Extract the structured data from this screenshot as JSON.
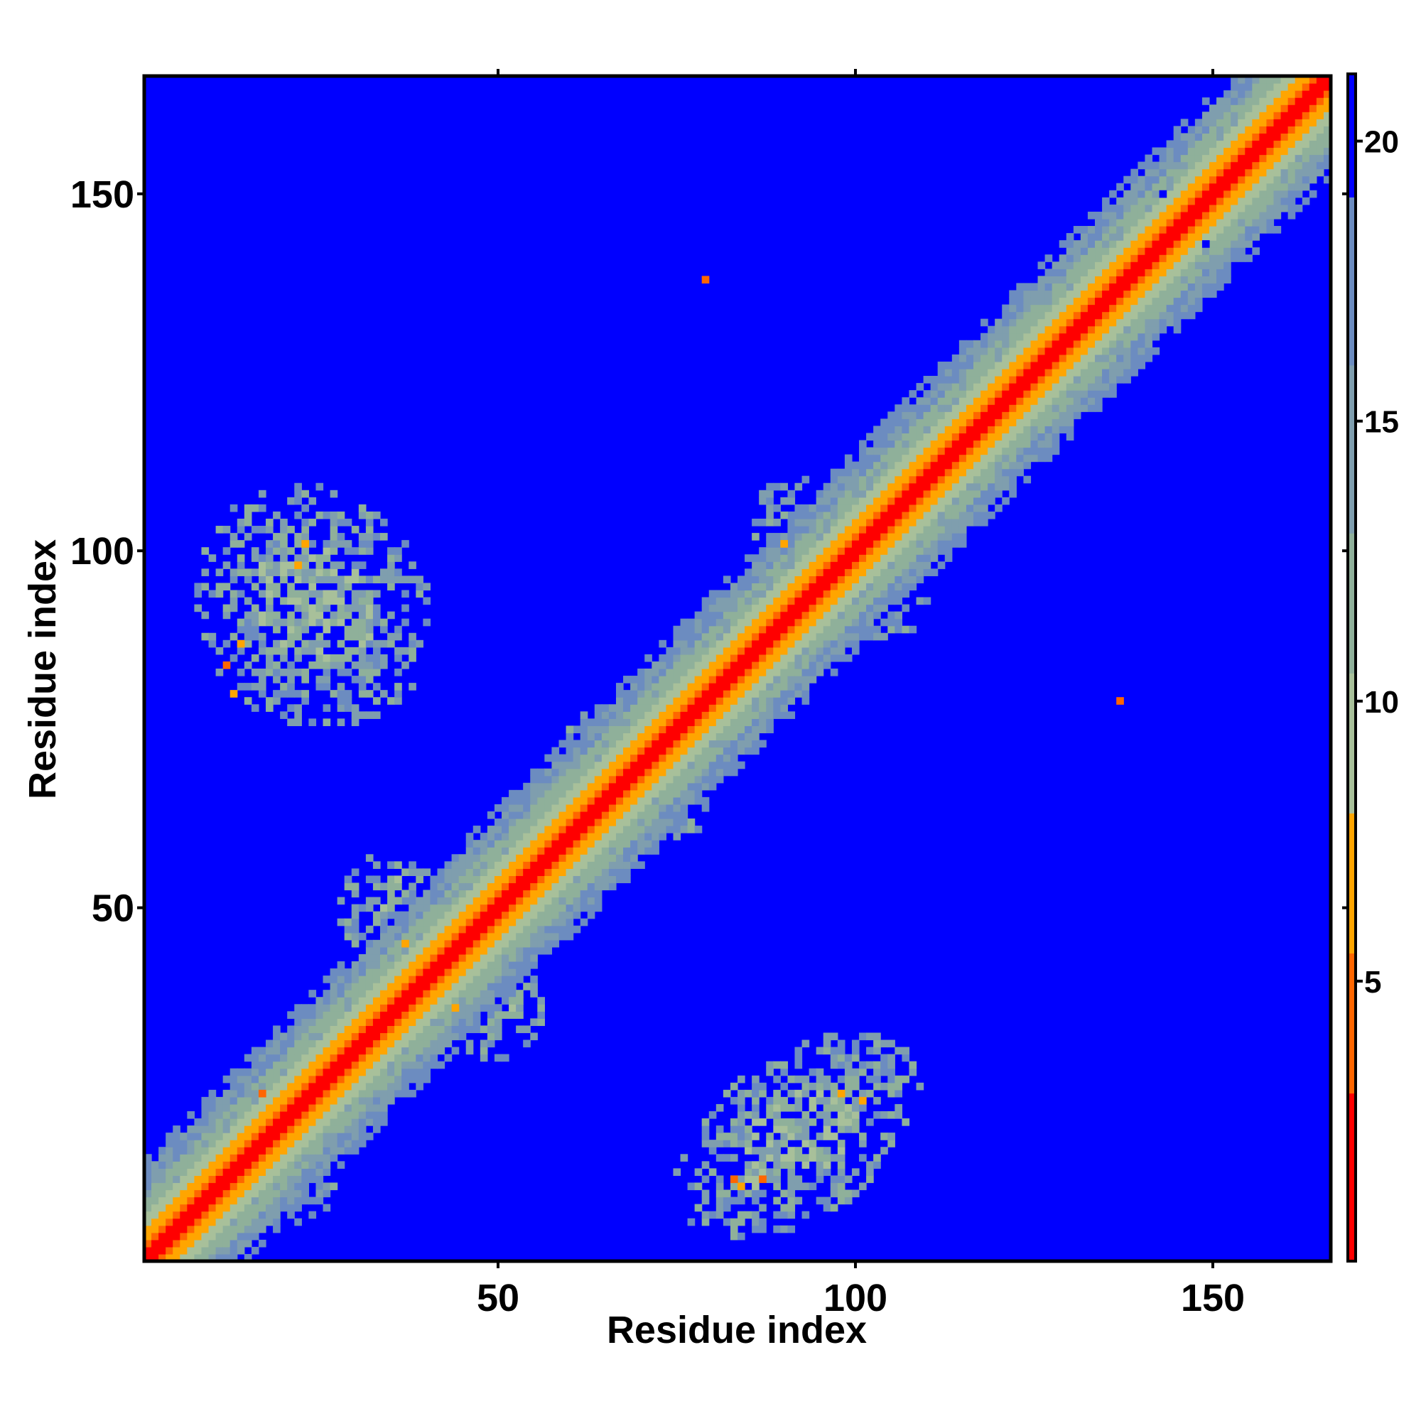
{
  "chart_data": {
    "type": "heatmap",
    "title": "",
    "xlabel": "Residue index",
    "ylabel": "Residue index",
    "xlim": [
      0.5,
      166.5
    ],
    "ylim": [
      0.5,
      166.5
    ],
    "n_residues": 166,
    "x_ticks": [
      50,
      100,
      150
    ],
    "y_ticks": [
      50,
      100,
      150
    ],
    "colorbar": {
      "range": [
        0,
        21.2
      ],
      "ticks": [
        5,
        10,
        15,
        20
      ],
      "colors": [
        {
          "max": 3,
          "color": "#ff0000"
        },
        {
          "max": 5.5,
          "color": "#ff6600"
        },
        {
          "max": 8,
          "color": "#ffa500"
        },
        {
          "max": 10.5,
          "color": "#a8c09a"
        },
        {
          "max": 13,
          "color": "#8fb09a"
        },
        {
          "max": 16,
          "color": "#7f9eae"
        },
        {
          "max": 19,
          "color": "#6c8cc0"
        },
        {
          "max": 21.2,
          "color": "#0000ff"
        }
      ],
      "background_color": "#0000ff"
    },
    "diagonal_band": {
      "widths": [
        [
          1,
          2
        ],
        [
          3,
          4
        ],
        [
          5,
          6
        ],
        [
          8,
          9
        ],
        [
          10,
          11
        ],
        [
          12,
          13
        ]
      ]
    },
    "contact_regions": [
      {
        "cx": 24,
        "cy": 92,
        "rx": 14,
        "ry": 16,
        "rotate": -40,
        "hotspots": [
          [
            12,
            84
          ],
          [
            14,
            87
          ],
          [
            23,
            101
          ],
          [
            22,
            98
          ],
          [
            13,
            80
          ]
        ]
      },
      {
        "cx": 92,
        "cy": 18,
        "rx": 17,
        "ry": 10,
        "rotate": -35,
        "hotspots": [
          [
            101,
            23
          ],
          [
            98,
            24
          ],
          [
            84,
            11
          ],
          [
            87,
            12
          ],
          [
            83,
            12
          ]
        ]
      },
      {
        "cx": 36,
        "cy": 50,
        "rx": 8,
        "ry": 7,
        "rotate": 0,
        "hotspots": [
          [
            37,
            45
          ]
        ]
      },
      {
        "cx": 48,
        "cy": 36,
        "rx": 8,
        "ry": 7,
        "rotate": 0,
        "hotspots": [
          [
            44,
            36
          ]
        ]
      },
      {
        "cx": 21,
        "cy": 15,
        "rx": 7,
        "ry": 8,
        "rotate": 0,
        "hotspots": [
          [
            17,
            24
          ],
          [
            22,
            18
          ]
        ]
      },
      {
        "cx": 66,
        "cy": 72,
        "rx": 6,
        "ry": 6,
        "rotate": 0,
        "hotspots": []
      },
      {
        "cx": 74,
        "cy": 66,
        "rx": 6,
        "ry": 6,
        "rotate": 0,
        "hotspots": []
      },
      {
        "cx": 92,
        "cy": 103,
        "rx": 6,
        "ry": 7,
        "rotate": 0,
        "hotspots": [
          [
            90,
            101
          ]
        ]
      },
      {
        "cx": 103,
        "cy": 94,
        "rx": 7,
        "ry": 6,
        "rotate": 0,
        "hotspots": [
          [
            97,
            94
          ]
        ]
      }
    ],
    "isolated_points": [
      {
        "x": 79,
        "y": 138,
        "value": 5
      },
      {
        "x": 137,
        "y": 79,
        "value": 5
      },
      {
        "x": 143,
        "y": 150,
        "value": 21
      },
      {
        "x": 149,
        "y": 143,
        "value": 21
      }
    ]
  }
}
